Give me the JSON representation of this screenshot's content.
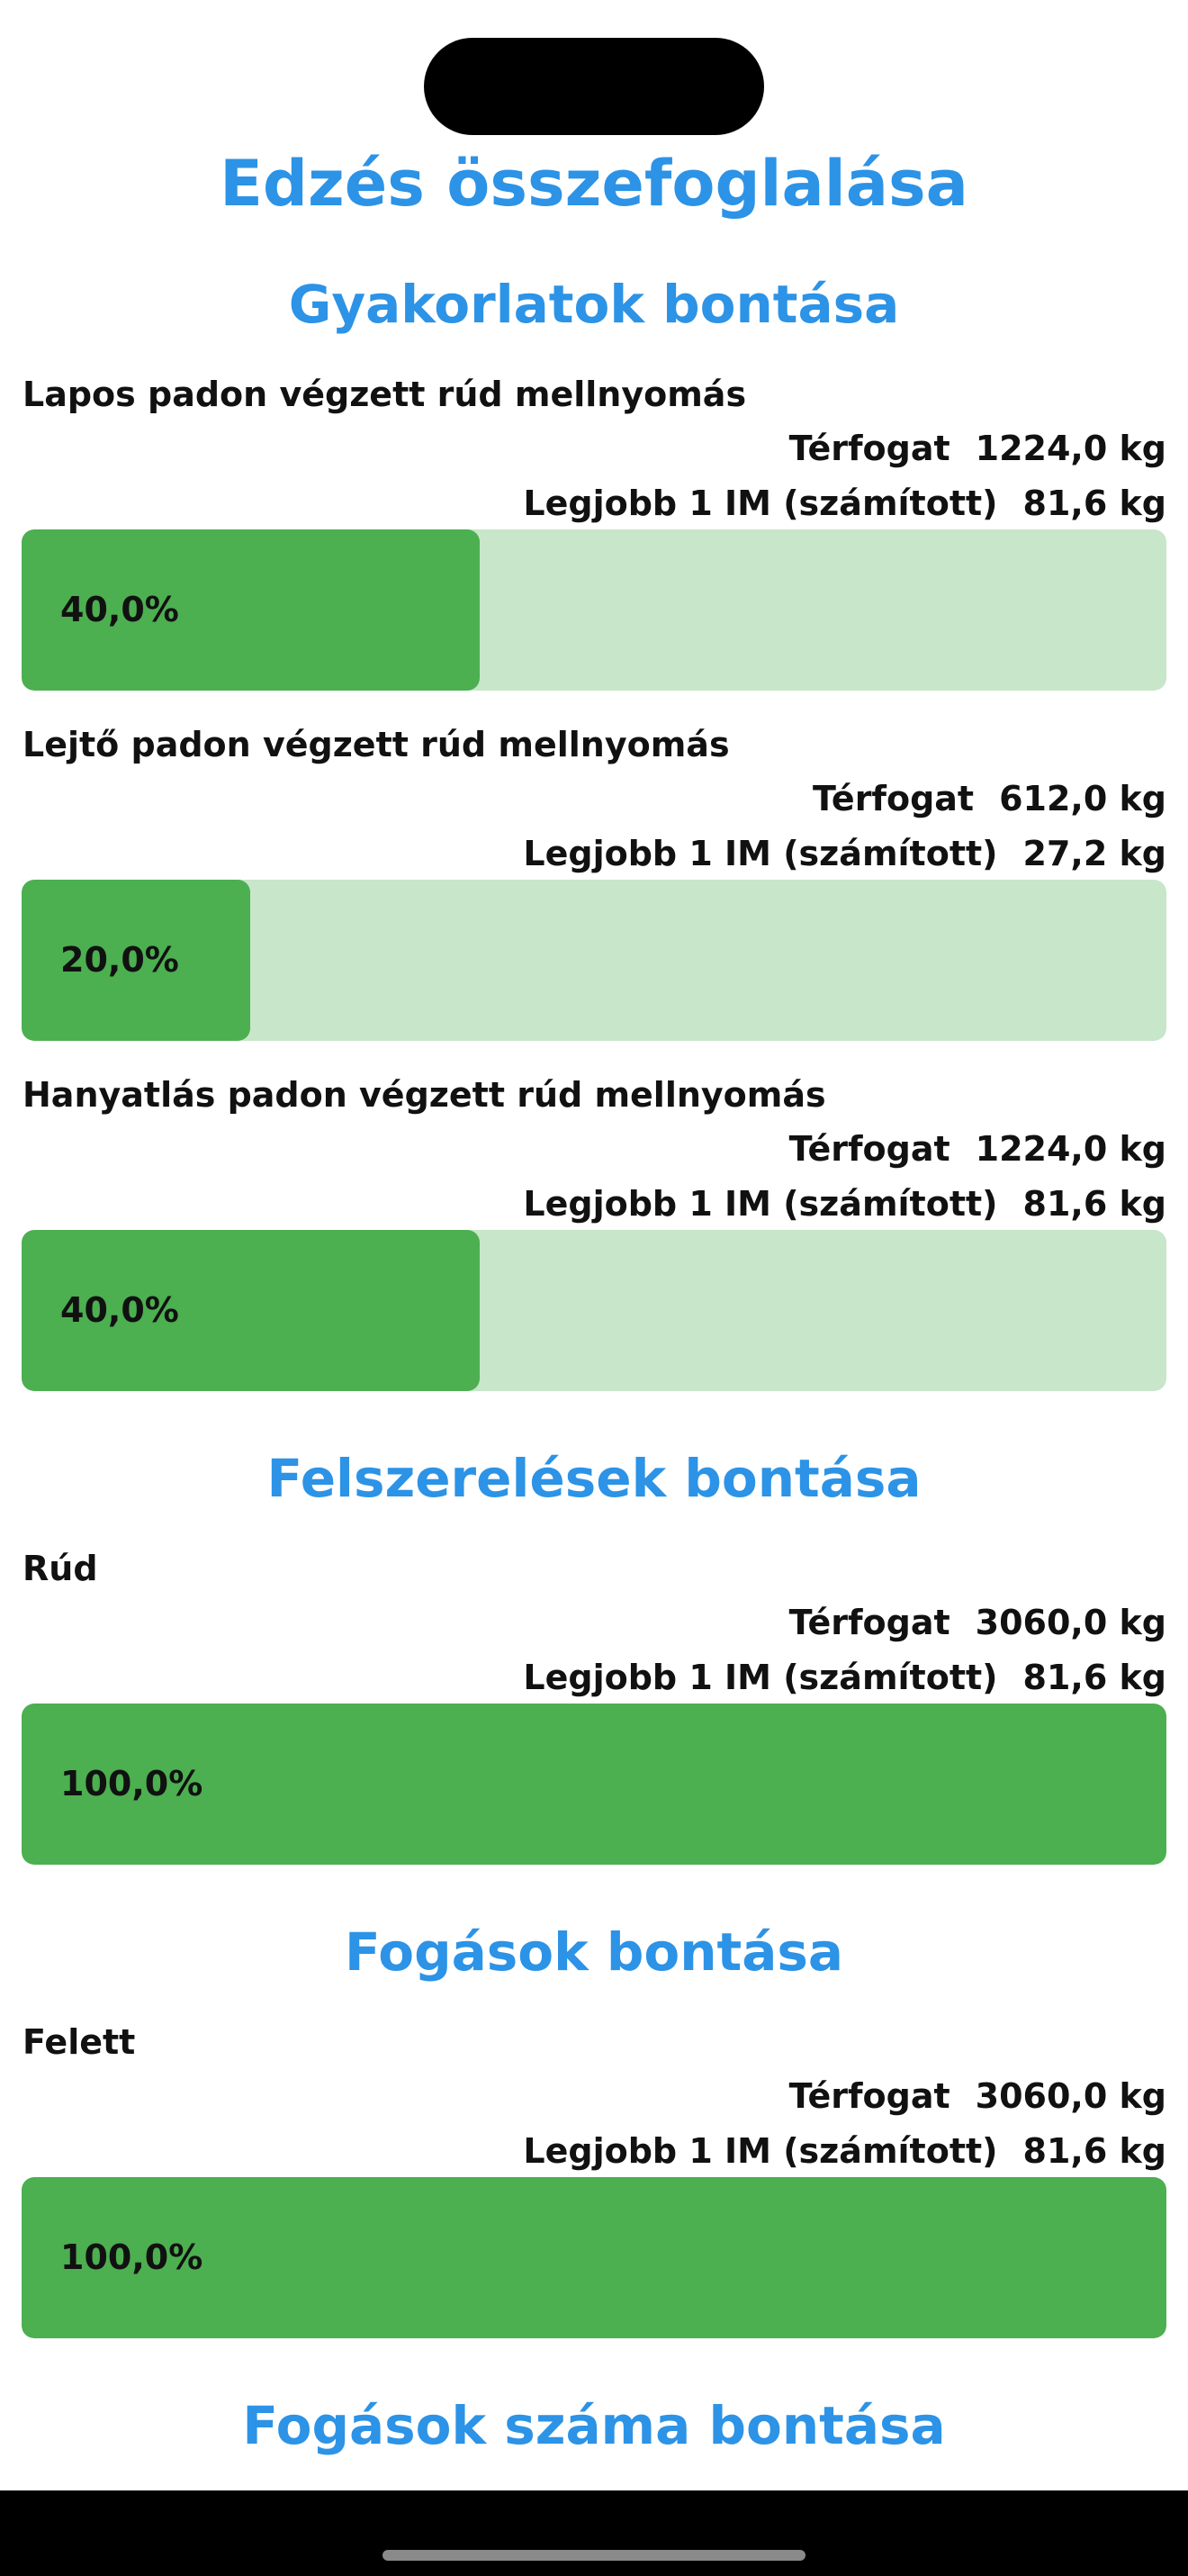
{
  "title": "Edzés összefoglalása",
  "sections": [
    {
      "title": "Gyakorlatok bontása",
      "items": [
        {
          "name": "Lapos padon végzett rúd mellnyomás",
          "volume_label": "Térfogat",
          "volume": "1224,0 kg",
          "one_rm_label": "Legjobb 1 IM (számított)",
          "one_rm": "81,6 kg",
          "share": {
            "value": 40,
            "label": "40,0%"
          }
        },
        {
          "name": "Lejtő padon végzett rúd mellnyomás",
          "volume_label": "Térfogat",
          "volume": "612,0 kg",
          "one_rm_label": "Legjobb 1 IM (számított)",
          "one_rm": "27,2 kg",
          "share": {
            "value": 20,
            "label": "20,0%"
          }
        },
        {
          "name": "Hanyatlás padon végzett rúd mellnyomás",
          "volume_label": "Térfogat",
          "volume": "1224,0 kg",
          "one_rm_label": "Legjobb 1 IM (számított)",
          "one_rm": "81,6 kg",
          "share": {
            "value": 40,
            "label": "40,0%"
          }
        }
      ]
    },
    {
      "title": "Felszerelések bontása",
      "items": [
        {
          "name": "Rúd",
          "volume_label": "Térfogat",
          "volume": "3060,0 kg",
          "one_rm_label": "Legjobb 1 IM (számított)",
          "one_rm": "81,6 kg",
          "share": {
            "value": 100,
            "label": "100,0%"
          }
        }
      ]
    },
    {
      "title": "Fogások bontása",
      "items": [
        {
          "name": "Felett",
          "volume_label": "Térfogat",
          "volume": "3060,0 kg",
          "one_rm_label": "Legjobb 1 IM (számított)",
          "one_rm": "81,6 kg",
          "share": {
            "value": 100,
            "label": "100,0%"
          }
        }
      ]
    },
    {
      "title": "Fogások száma bontása",
      "items": []
    }
  ]
}
